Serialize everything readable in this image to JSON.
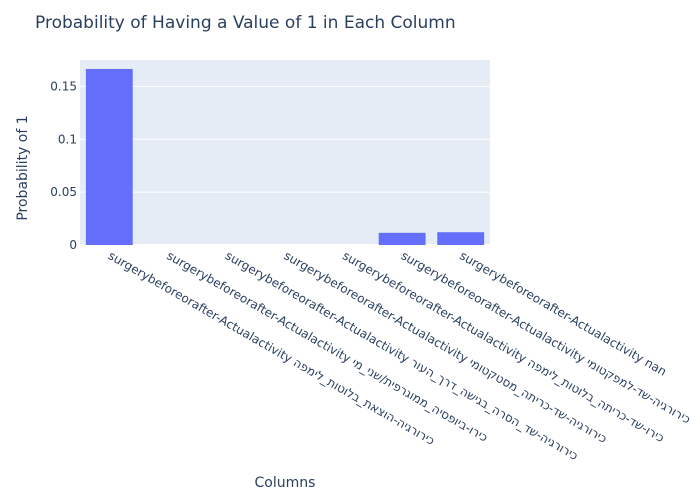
{
  "chart_data": {
    "type": "bar",
    "title": "Probability of Having a Value of 1 in Each Column",
    "xlabel": "Columns",
    "ylabel": "Probability of 1",
    "ylim": [
      0,
      0.175
    ],
    "yticks": [
      0,
      0.05,
      0.1,
      0.15
    ],
    "ytick_labels": [
      "0",
      "0.05",
      "0.1",
      "0.15"
    ],
    "categories": [
      "surgerybeforeorafter-Actualactivity כירורגיה-הוצאת_בלוטות_לימפה",
      "surgerybeforeorafter-Actualactivity כירו-ביופסיה_ממוגרפית/שני_מי",
      "surgerybeforeorafter-Actualactivity כירורגיה-שד_הסרה_בגישה_דרך_העור",
      "surgerybeforeorafter-Actualactivity כירורגיה-שד-כריתה_מסטקטומי",
      "surgerybeforeorafter-Actualactivity כירו-שד-כריתה_בלוטות_לימפה",
      "surgerybeforeorafter-Actualactivity כירורגיה-שד-למפקטומי",
      "surgerybeforeorafter-Actualactivity nan"
    ],
    "values": [
      0.1665,
      0.0,
      0.0,
      0.0,
      0.0,
      0.0115,
      0.0121
    ],
    "bar_color": "#636efa",
    "plot_bg": "#e5ecf6",
    "grid": true,
    "legend": "none"
  }
}
